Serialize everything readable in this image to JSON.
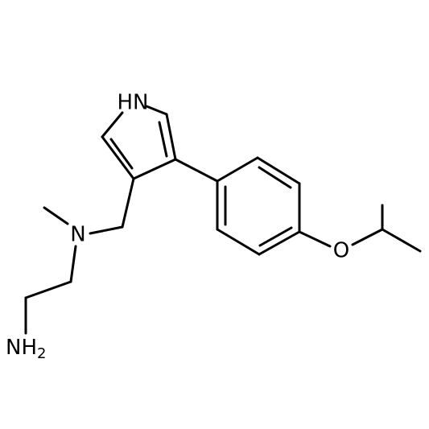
{
  "atoms": [
    {
      "label": "HN"
    },
    {
      "label": "N"
    },
    {
      "label": "O"
    },
    {
      "label": "NH",
      "subscript": "2"
    }
  ]
}
